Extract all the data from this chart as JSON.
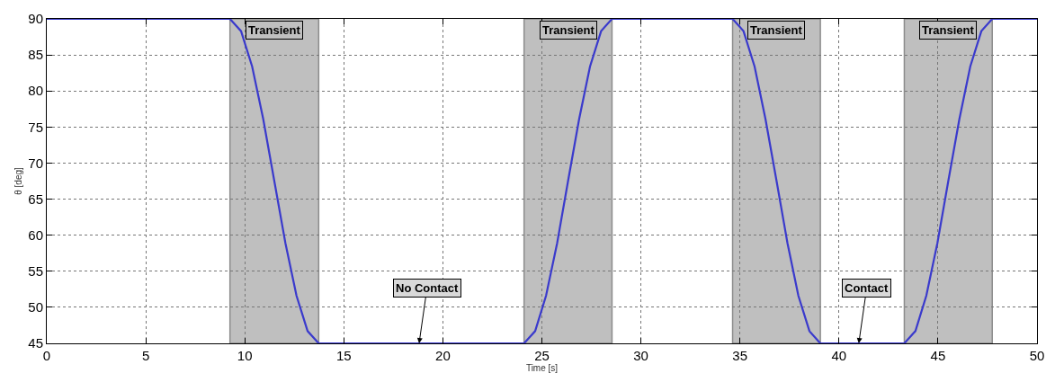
{
  "chart_data": {
    "type": "line",
    "xlabel": "Time [s]",
    "ylabel": "θ [deg]",
    "x": [
      0,
      9.25,
      9.81,
      10.37,
      10.93,
      11.49,
      12.05,
      12.61,
      13.17,
      13.73,
      24.1,
      24.66,
      25.21,
      25.77,
      26.32,
      26.88,
      27.43,
      27.99,
      28.54,
      34.63,
      35.18,
      35.74,
      36.29,
      36.85,
      37.4,
      37.95,
      38.51,
      39.06,
      43.3,
      43.86,
      44.41,
      44.97,
      45.52,
      46.08,
      46.63,
      47.19,
      47.74,
      50
    ],
    "series": [
      {
        "color": "#3a3acc",
        "values": [
          90,
          90,
          88.3,
          83.4,
          76.1,
          67.5,
          58.9,
          51.6,
          46.7,
          45,
          45,
          46.7,
          51.6,
          58.9,
          67.5,
          76.1,
          83.4,
          88.3,
          90,
          90,
          88.3,
          83.4,
          76.1,
          67.5,
          58.9,
          51.6,
          46.7,
          45,
          45,
          46.7,
          51.6,
          58.9,
          67.5,
          76.1,
          83.4,
          88.3,
          90,
          90
        ]
      }
    ],
    "xlim": [
      0,
      50
    ],
    "ylim": [
      45,
      90
    ],
    "xticks": [
      0,
      5,
      10,
      15,
      20,
      25,
      30,
      35,
      40,
      45,
      50
    ],
    "yticks": [
      45,
      50,
      55,
      60,
      65,
      70,
      75,
      80,
      85,
      90
    ],
    "bands": [
      {
        "axis": "x",
        "from": 9.25,
        "to": 13.73,
        "label": "Transient",
        "color": "#bfbfbf"
      },
      {
        "axis": "x",
        "from": 24.1,
        "to": 28.54,
        "label": "Transient",
        "color": "#bfbfbf"
      },
      {
        "axis": "x",
        "from": 34.63,
        "to": 39.06,
        "label": "Transient",
        "color": "#bfbfbf"
      },
      {
        "axis": "x",
        "from": 43.3,
        "to": 47.74,
        "label": "Transient",
        "color": "#bfbfbf"
      }
    ],
    "annotations": [
      {
        "text": "No Contact",
        "x": 18.8,
        "y": 45
      },
      {
        "text": "Contact",
        "x": 41,
        "y": 45
      }
    ],
    "grid": true,
    "marker": "none",
    "line_style": "solid"
  }
}
